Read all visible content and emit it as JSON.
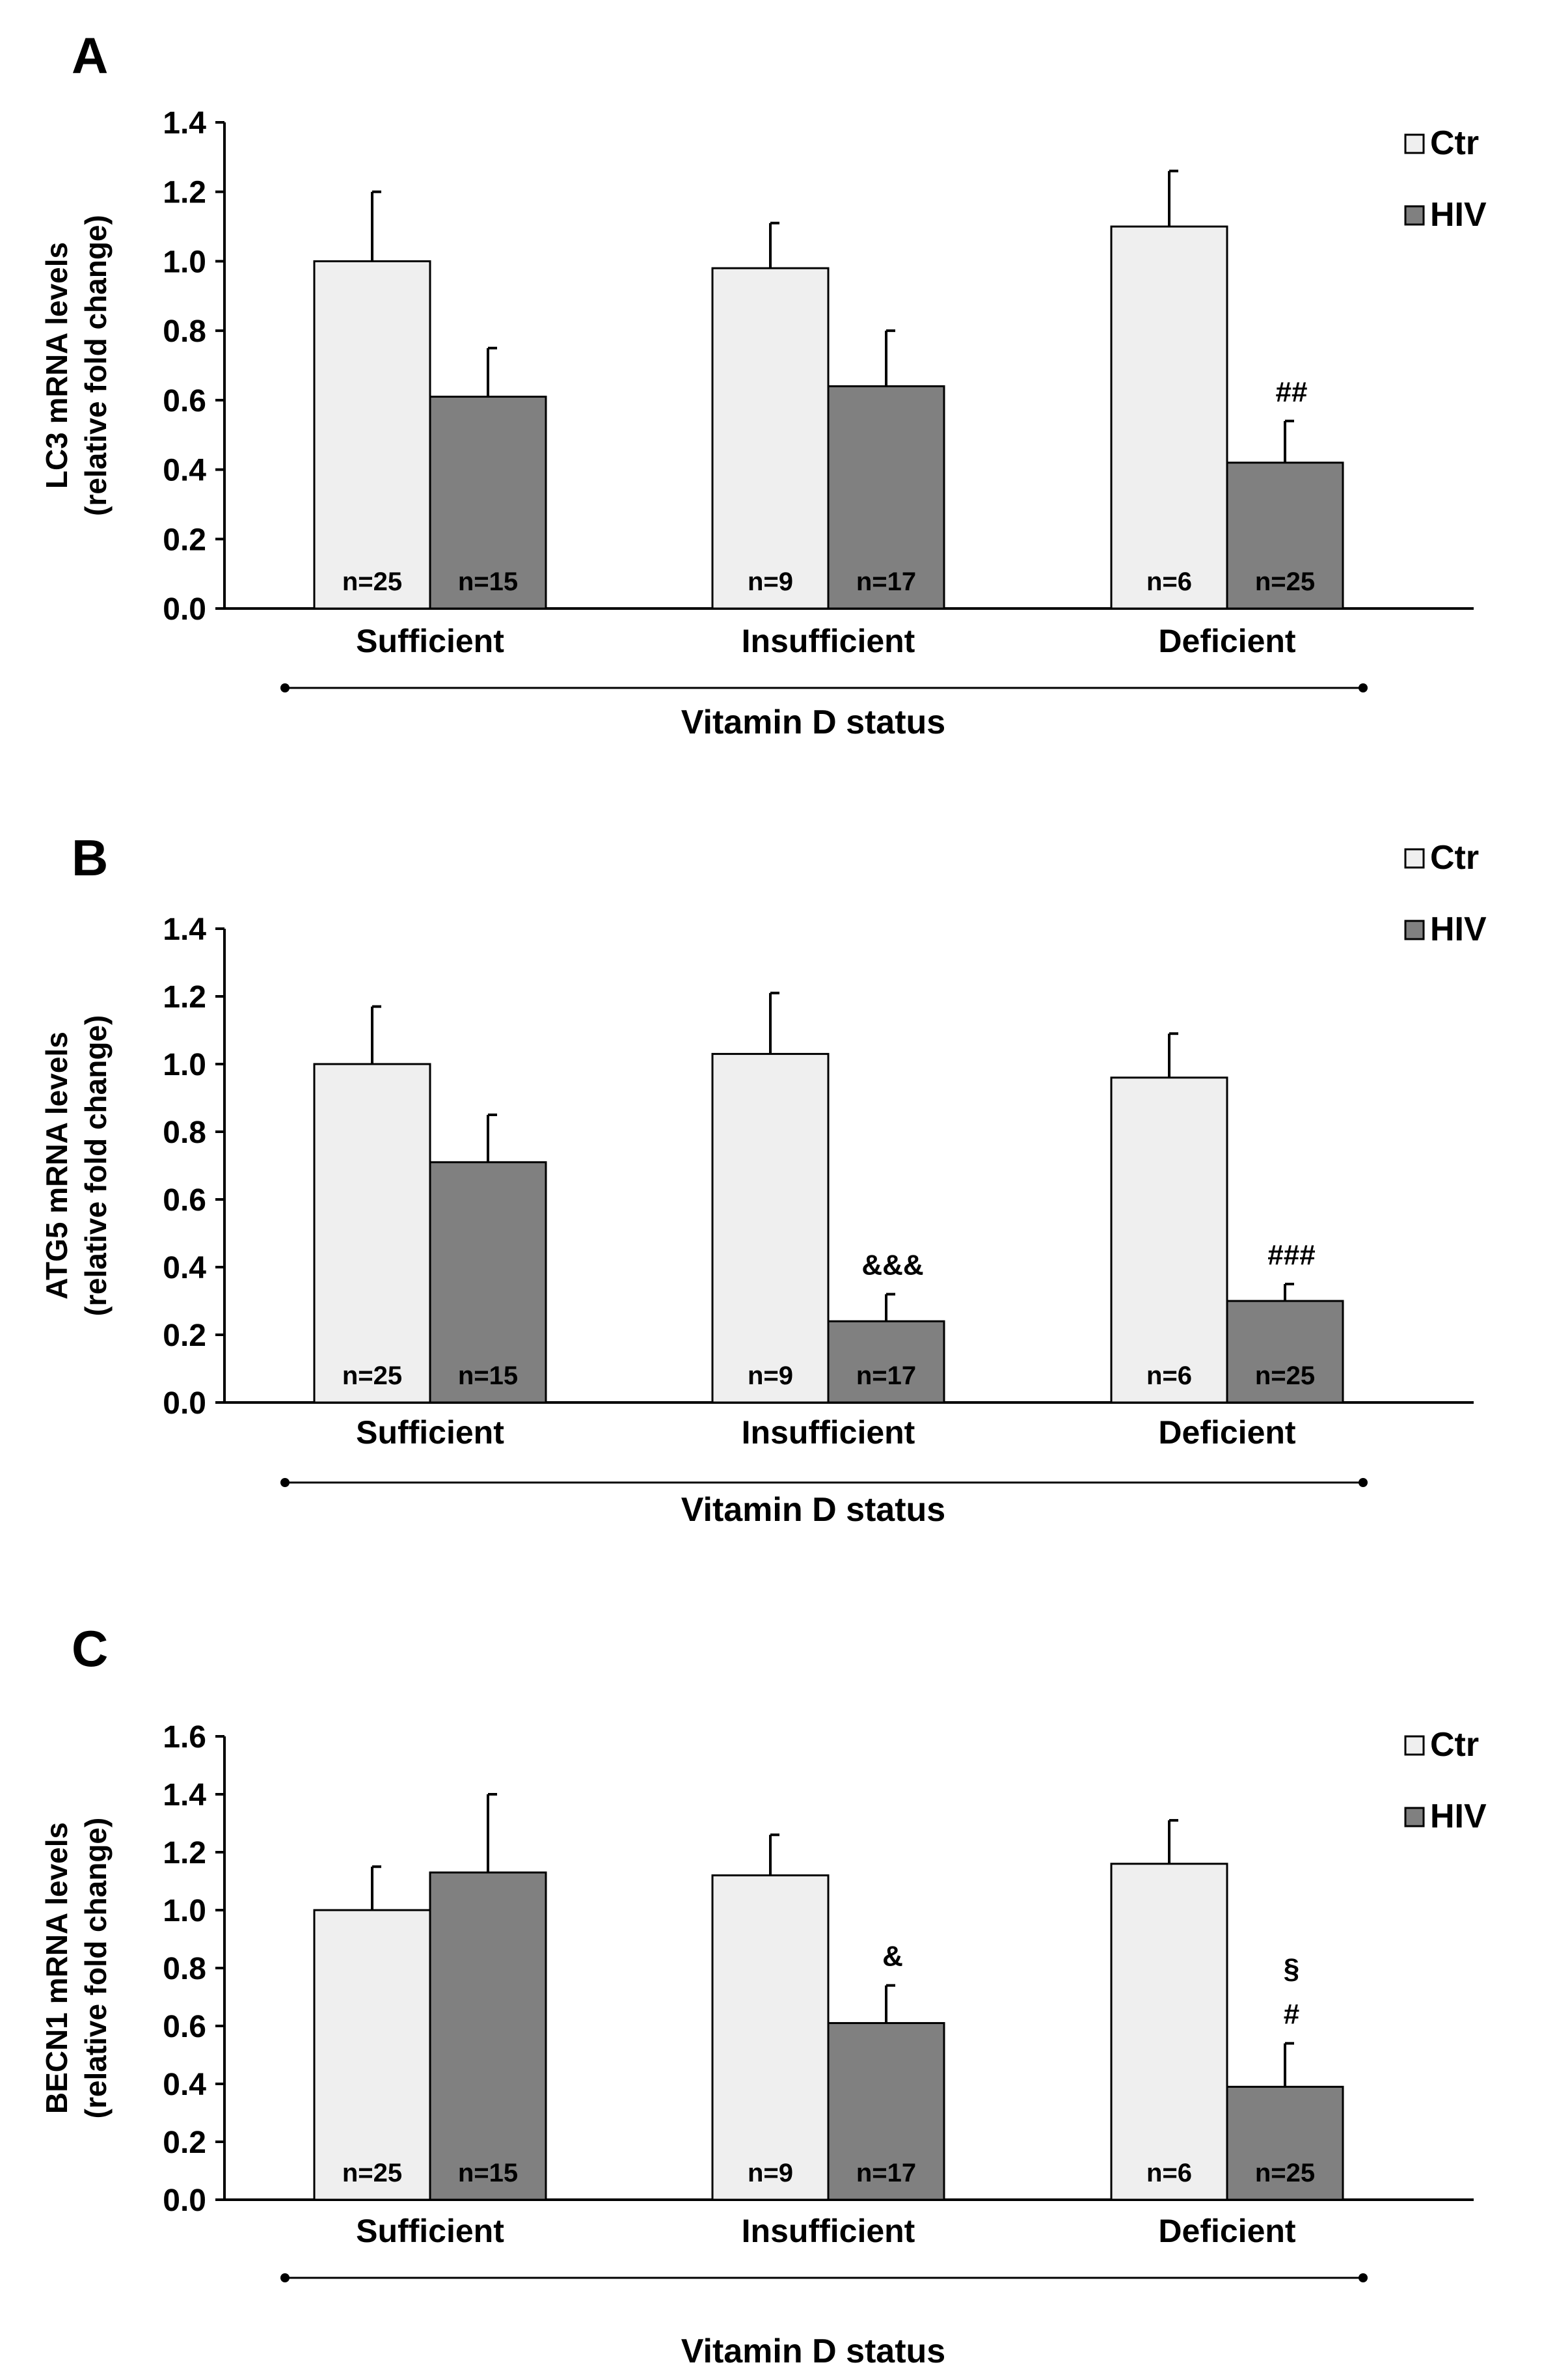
{
  "figure": {
    "panels": [
      "A",
      "B",
      "C"
    ],
    "colors": {
      "ctr": "#efefef",
      "hiv": "#808080",
      "axis": "#000000"
    }
  },
  "chart_data": [
    {
      "type": "bar",
      "panel_label": "A",
      "ylabel_line1": "LC3 mRNA levels",
      "ylabel_line2": "(relative fold change)",
      "xlabel": "Vitamin D status",
      "ylim": [
        0,
        1.4
      ],
      "yticks": [
        "0.0",
        "0.2",
        "0.4",
        "0.6",
        "0.8",
        "1.0",
        "1.2",
        "1.4"
      ],
      "categories": [
        "Sufficient",
        "Insufficient",
        "Deficient"
      ],
      "legend": [
        "Ctr",
        "HIV"
      ],
      "series": [
        {
          "name": "Ctr",
          "values": [
            1.0,
            0.98,
            1.1
          ],
          "errors": [
            0.2,
            0.13,
            0.16
          ],
          "n_labels": [
            "n=25",
            "n=9",
            "n=6"
          ],
          "annotations": [
            "",
            "",
            ""
          ]
        },
        {
          "name": "HIV",
          "values": [
            0.61,
            0.64,
            0.42
          ],
          "errors": [
            0.14,
            0.16,
            0.12
          ],
          "n_labels": [
            "n=15",
            "n=17",
            "n=25"
          ],
          "annotations": [
            "",
            "",
            "##"
          ]
        }
      ]
    },
    {
      "type": "bar",
      "panel_label": "B",
      "ylabel_line1": "ATG5 mRNA levels",
      "ylabel_line2": "(relative fold change)",
      "xlabel": "Vitamin D status",
      "ylim": [
        0,
        1.4
      ],
      "yticks": [
        "0.0",
        "0.2",
        "0.4",
        "0.6",
        "0.8",
        "1.0",
        "1.2",
        "1.4"
      ],
      "categories": [
        "Sufficient",
        "Insufficient",
        "Deficient"
      ],
      "legend": [
        "Ctr",
        "HIV"
      ],
      "series": [
        {
          "name": "Ctr",
          "values": [
            1.0,
            1.03,
            0.96
          ],
          "errors": [
            0.17,
            0.18,
            0.13
          ],
          "n_labels": [
            "n=25",
            "n=9",
            "n=6"
          ],
          "annotations": [
            "",
            "",
            ""
          ]
        },
        {
          "name": "HIV",
          "values": [
            0.71,
            0.24,
            0.3
          ],
          "errors": [
            0.14,
            0.08,
            0.05
          ],
          "n_labels": [
            "n=15",
            "n=17",
            "n=25"
          ],
          "annotations": [
            "",
            "&&&",
            "###"
          ]
        }
      ]
    },
    {
      "type": "bar",
      "panel_label": "C",
      "ylabel_line1": "BECN1 mRNA levels",
      "ylabel_line2": "(relative fold change)",
      "xlabel": "Vitamin D status",
      "ylim": [
        0,
        1.6
      ],
      "yticks": [
        "0.0",
        "0.2",
        "0.4",
        "0.6",
        "0.8",
        "1.0",
        "1.2",
        "1.4",
        "1.6"
      ],
      "categories": [
        "Sufficient",
        "Insufficient",
        "Deficient"
      ],
      "legend": [
        "Ctr",
        "HIV"
      ],
      "series": [
        {
          "name": "Ctr",
          "values": [
            1.0,
            1.12,
            1.16
          ],
          "errors": [
            0.15,
            0.14,
            0.15
          ],
          "n_labels": [
            "n=25",
            "n=9",
            "n=6"
          ],
          "annotations": [
            "",
            "",
            ""
          ]
        },
        {
          "name": "HIV",
          "values": [
            1.13,
            0.61,
            0.39
          ],
          "errors": [
            0.27,
            0.13,
            0.15
          ],
          "n_labels": [
            "n=15",
            "n=17",
            "n=25"
          ],
          "annotations": [
            "",
            "&",
            "§\n#"
          ]
        }
      ]
    }
  ]
}
